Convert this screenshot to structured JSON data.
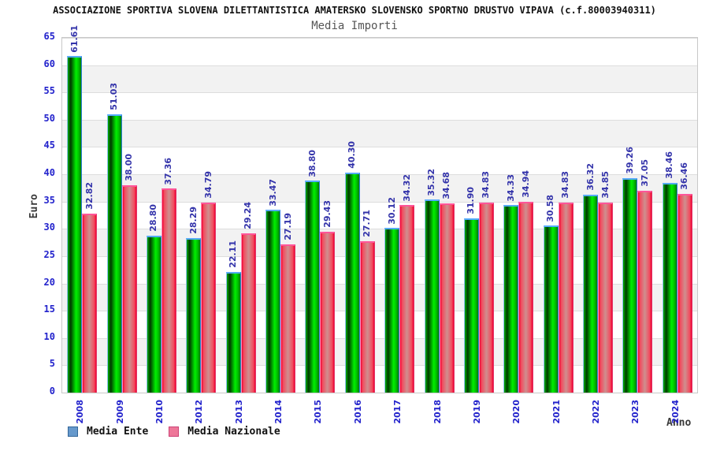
{
  "header": {
    "title": "ASSOCIAZIONE SPORTIVA SLOVENA DILETTANTISTICA AMATERSKO SLOVENSKO SPORTNO DRUSTVO VIPAVA (c.f.80003940311)",
    "subtitle": "Media Importi"
  },
  "chart_data": {
    "type": "bar",
    "title": "Media Importi",
    "xlabel": "Anno",
    "ylabel": "Euro",
    "ylim": [
      0,
      65
    ],
    "ytick_step": 5,
    "grid": "horizontal gridlines with alternating light-gray bands every 5 units",
    "legend_position": "bottom-left",
    "value_labels": "rotated 90deg above each bar, two decimals",
    "categories": [
      "2008",
      "2009",
      "2010",
      "2012",
      "2013",
      "2014",
      "2015",
      "2016",
      "2017",
      "2018",
      "2019",
      "2020",
      "2021",
      "2022",
      "2023",
      "2024"
    ],
    "series": [
      {
        "name": "Media Ente",
        "values": [
          61.61,
          51.03,
          28.8,
          28.29,
          22.11,
          33.47,
          38.8,
          40.3,
          30.12,
          35.32,
          31.9,
          34.33,
          30.58,
          36.32,
          39.26,
          38.46
        ]
      },
      {
        "name": "Media Nazionale",
        "values": [
          32.82,
          38.0,
          37.36,
          34.79,
          29.24,
          27.19,
          29.43,
          27.71,
          34.32,
          34.68,
          34.83,
          34.94,
          34.83,
          34.85,
          37.05,
          36.46
        ]
      }
    ]
  },
  "legend": {
    "items": [
      {
        "label": "Media Ente",
        "swatch_color": "#6699cc",
        "swatch_border": "#336699"
      },
      {
        "label": "Media Nazionale",
        "swatch_color": "#ee7799",
        "swatch_border": "#cc4477"
      }
    ]
  },
  "colors": {
    "tick_label_blue": "#2222cc",
    "value_label_blue": "#3333aa",
    "bar_ente_fill": "green cylinder gradient #003b00-#00ef00",
    "bar_ente_cap": "#55aaff",
    "bar_nazionale_fill": "red cylinder gradient #ee0033-#cf8f8f",
    "bar_nazionale_cap": "#ff5599",
    "band_gray": "#f2f2f2",
    "grid_line": "#dddddd",
    "plot_border": "#c8c8c8",
    "axis_title_gray": "#3a3a3a"
  }
}
